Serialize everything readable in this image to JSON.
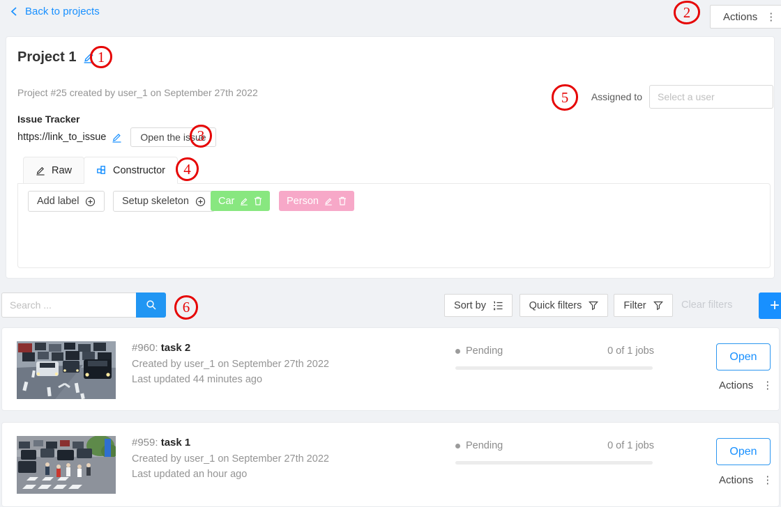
{
  "colors": {
    "accent_blue": "#1890ff",
    "car_label": "#88e780",
    "person_label": "#f7a8c8",
    "annotation_red": "#e60505"
  },
  "topbar": {
    "back_label": "Back to projects",
    "actions_label": "Actions"
  },
  "annotations": [
    "1",
    "2",
    "3",
    "4",
    "5",
    "6"
  ],
  "project": {
    "title": "Project 1",
    "meta": "Project #25 created by user_1 on September 27th 2022",
    "assigned_to_label": "Assigned to",
    "assignee_placeholder": "Select a user",
    "issue_tracker_label": "Issue Tracker",
    "issue_url": "https://link_to_issue",
    "open_issue_button": "Open the issue",
    "tabs": {
      "raw": "Raw",
      "constructor": "Constructor"
    },
    "constructor_panel": {
      "add_label_button": "Add label",
      "setup_skeleton_button": "Setup skeleton",
      "labels": [
        {
          "name": "Car",
          "color": "#88e780"
        },
        {
          "name": "Person",
          "color": "#f7a8c8"
        }
      ]
    }
  },
  "toolbar": {
    "search_placeholder": "Search ...",
    "sort_by_button": "Sort by",
    "quick_filters_button": "Quick filters",
    "filter_button": "Filter",
    "clear_filters_button": "Clear filters",
    "add_task_button": "+"
  },
  "tasks": [
    {
      "id": "#960:",
      "name": "task 2",
      "created": "Created by user_1 on September 27th 2022",
      "updated": "Last updated 44 minutes ago",
      "status": "Pending",
      "jobs": "0 of 1 jobs",
      "progress_percent": 0,
      "open_button": "Open",
      "actions_button": "Actions"
    },
    {
      "id": "#959:",
      "name": "task 1",
      "created": "Created by user_1 on September 27th 2022",
      "updated": "Last updated an hour ago",
      "status": "Pending",
      "jobs": "0 of 1 jobs",
      "progress_percent": 0,
      "open_button": "Open",
      "actions_button": "Actions"
    }
  ]
}
